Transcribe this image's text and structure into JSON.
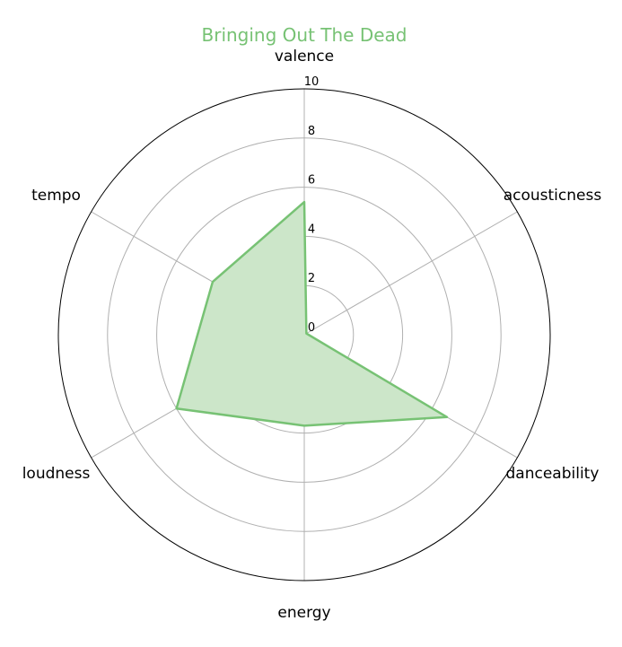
{
  "chart_data": {
    "type": "radar",
    "title": "Bringing Out The Dead",
    "categories": [
      "valence",
      "acousticness",
      "danceability",
      "energy",
      "loudness",
      "tempo"
    ],
    "series": [
      {
        "values": [
          5.4,
          0.1,
          6.7,
          3.7,
          6.0,
          4.3
        ]
      }
    ],
    "rlim": [
      0,
      10
    ],
    "r_ticks": [
      "0",
      "2",
      "4",
      "6",
      "8",
      "10"
    ],
    "grid": true,
    "colors": {
      "series": "#77c274",
      "fill": "#cce6c9",
      "title": "#77c274",
      "grid": "#b0b0b0",
      "frame": "#000000"
    }
  }
}
